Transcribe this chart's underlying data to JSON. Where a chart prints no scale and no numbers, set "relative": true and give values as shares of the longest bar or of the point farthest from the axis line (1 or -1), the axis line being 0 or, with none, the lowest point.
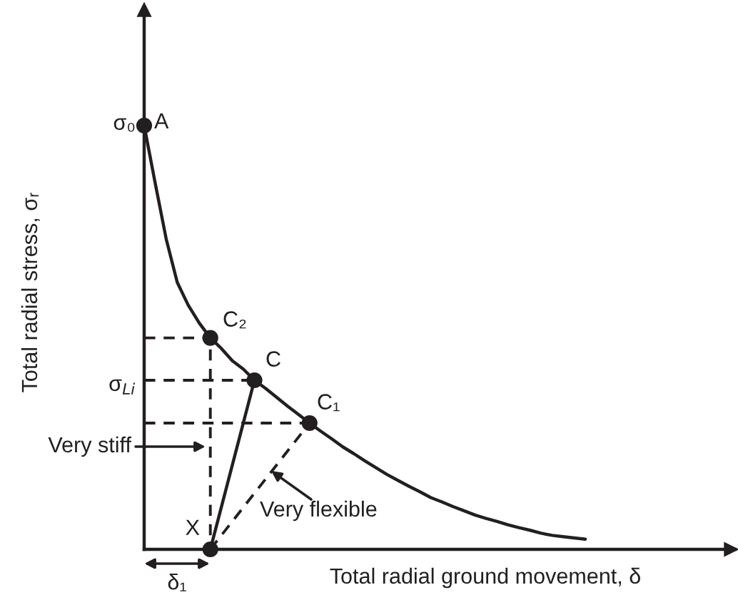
{
  "chart_data": {
    "type": "line",
    "relative": true,
    "xlabel": "Total radial ground movement, δ",
    "ylabel": "Total radial stress, σᵣ",
    "categories": [
      null,
      null,
      null,
      null,
      null,
      null,
      null,
      null,
      null,
      null,
      null,
      null,
      null,
      null,
      null,
      null,
      null,
      null,
      null,
      null,
      null,
      null,
      null,
      null,
      null,
      null,
      null,
      null,
      null,
      null,
      null,
      null,
      null,
      null,
      null,
      null,
      null,
      null,
      null,
      null,
      null
    ],
    "series": [
      {
        "color": "#231f20",
        "values": [
          1,
          0.864,
          0.732,
          0.63,
          0.576,
          0.534,
          0.499,
          0.474,
          0.445,
          0.425,
          0.399,
          0.38,
          0.359,
          0.338,
          0.318,
          0.298,
          0.279,
          0.261,
          0.242,
          0.226,
          0.209,
          0.193,
          0.177,
          0.163,
          0.149,
          0.136,
          0.122,
          0.112,
          0.101,
          0.091,
          0.081,
          0.073,
          0.066,
          0.058,
          0.051,
          0.045,
          0.038,
          0.033,
          0.03,
          0.027,
          0.024
        ]
      }
    ],
    "annotations": [
      "σ₀",
      "A",
      "C₂",
      "σ$_{Li}$",
      "C",
      "C₁",
      "Very stiff",
      "Very flexible",
      "X",
      "δ₁"
    ]
  }
}
